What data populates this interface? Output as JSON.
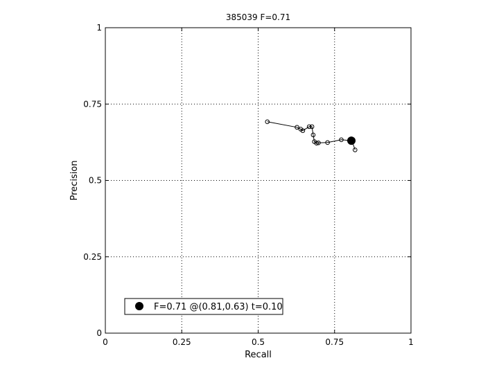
{
  "chart_data": {
    "type": "line",
    "title": "385039 F=0.71",
    "xlabel": "Recall",
    "ylabel": "Precision",
    "xlim": [
      0,
      1
    ],
    "ylim": [
      0,
      1
    ],
    "xticks": [
      0,
      0.25,
      0.5,
      0.75,
      1
    ],
    "yticks": [
      0,
      0.25,
      0.5,
      0.75,
      1
    ],
    "xtick_labels": [
      "0",
      "0.25",
      "0.5",
      "0.75",
      "1"
    ],
    "ytick_labels": [
      "0",
      "0.25",
      "0.5",
      "0.75",
      "1"
    ],
    "grid": true,
    "grid_style": "dotted",
    "series": [
      {
        "marker": "open-circle",
        "x": [
          0.53,
          0.627,
          0.639,
          0.646,
          0.667,
          0.676,
          0.68,
          0.684,
          0.691,
          0.697,
          0.727,
          0.772,
          0.807,
          0.817
        ],
        "y": [
          0.692,
          0.674,
          0.668,
          0.663,
          0.676,
          0.676,
          0.649,
          0.627,
          0.622,
          0.623,
          0.624,
          0.633,
          0.63,
          0.6
        ]
      }
    ],
    "best_point": {
      "x": 0.805,
      "y": 0.63,
      "marker": "filled-circle"
    },
    "legend": {
      "entries": [
        "F=0.71 @(0.81,0.63) t=0.10"
      ],
      "placement": "bottom-left"
    }
  }
}
